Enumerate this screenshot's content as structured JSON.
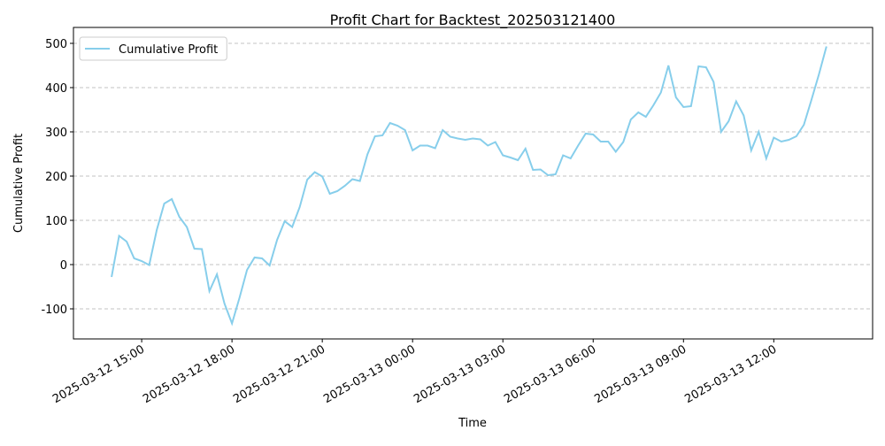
{
  "chart_data": {
    "type": "line",
    "title": "Profit Chart for Backtest_202503121400",
    "x_label": "Time",
    "y_label": "Cumulative Profit",
    "x": [
      "2025-03-12 14:00",
      "2025-03-12 14:15",
      "2025-03-12 14:30",
      "2025-03-12 14:45",
      "2025-03-12 15:00",
      "2025-03-12 15:15",
      "2025-03-12 15:30",
      "2025-03-12 15:45",
      "2025-03-12 16:00",
      "2025-03-12 16:15",
      "2025-03-12 16:30",
      "2025-03-12 16:45",
      "2025-03-12 17:00",
      "2025-03-12 17:15",
      "2025-03-12 17:30",
      "2025-03-12 17:45",
      "2025-03-12 18:00",
      "2025-03-12 18:15",
      "2025-03-12 18:30",
      "2025-03-12 18:45",
      "2025-03-12 19:00",
      "2025-03-12 19:15",
      "2025-03-12 19:30",
      "2025-03-12 19:45",
      "2025-03-12 20:00",
      "2025-03-12 20:15",
      "2025-03-12 20:30",
      "2025-03-12 20:45",
      "2025-03-12 21:00",
      "2025-03-12 21:15",
      "2025-03-12 21:30",
      "2025-03-12 21:45",
      "2025-03-12 22:00",
      "2025-03-12 22:15",
      "2025-03-12 22:30",
      "2025-03-12 22:45",
      "2025-03-12 23:00",
      "2025-03-12 23:15",
      "2025-03-12 23:30",
      "2025-03-12 23:45",
      "2025-03-13 00:00",
      "2025-03-13 00:15",
      "2025-03-13 00:30",
      "2025-03-13 00:45",
      "2025-03-13 01:00",
      "2025-03-13 01:15",
      "2025-03-13 01:30",
      "2025-03-13 01:45",
      "2025-03-13 02:00",
      "2025-03-13 02:15",
      "2025-03-13 02:30",
      "2025-03-13 02:45",
      "2025-03-13 03:00",
      "2025-03-13 03:15",
      "2025-03-13 03:30",
      "2025-03-13 03:45",
      "2025-03-13 04:00",
      "2025-03-13 04:15",
      "2025-03-13 04:30",
      "2025-03-13 04:45",
      "2025-03-13 05:00",
      "2025-03-13 05:15",
      "2025-03-13 05:30",
      "2025-03-13 05:45",
      "2025-03-13 06:00",
      "2025-03-13 06:15",
      "2025-03-13 06:30",
      "2025-03-13 06:45",
      "2025-03-13 07:00",
      "2025-03-13 07:15",
      "2025-03-13 07:30",
      "2025-03-13 07:45",
      "2025-03-13 08:00",
      "2025-03-13 08:15",
      "2025-03-13 08:30",
      "2025-03-13 08:45",
      "2025-03-13 09:00",
      "2025-03-13 09:15",
      "2025-03-13 09:30",
      "2025-03-13 09:45",
      "2025-03-13 10:00",
      "2025-03-13 10:15",
      "2025-03-13 10:30",
      "2025-03-13 10:45",
      "2025-03-13 11:00",
      "2025-03-13 11:15",
      "2025-03-13 11:30",
      "2025-03-13 11:45",
      "2025-03-13 12:00",
      "2025-03-13 12:15",
      "2025-03-13 12:30",
      "2025-03-13 12:45",
      "2025-03-13 13:00",
      "2025-03-13 13:15",
      "2025-03-13 13:30",
      "2025-03-13 13:45"
    ],
    "series": [
      {
        "name": "Cumulative Profit",
        "color": "#87ceeb",
        "values": [
          -28,
          65,
          52,
          14,
          8,
          -1,
          78,
          138,
          148,
          108,
          85,
          36,
          35,
          -60,
          -22,
          -88,
          -133,
          -75,
          -12,
          16,
          14,
          -2,
          56,
          98,
          85,
          130,
          192,
          209,
          199,
          160,
          166,
          178,
          193,
          189,
          249,
          290,
          292,
          320,
          314,
          304,
          258,
          269,
          269,
          263,
          304,
          289,
          285,
          282,
          285,
          283,
          269,
          277,
          247,
          242,
          236,
          262,
          214,
          215,
          202,
          204,
          247,
          240,
          269,
          296,
          294,
          278,
          278,
          255,
          277,
          328,
          344,
          334,
          360,
          389,
          450,
          378,
          356,
          358,
          448,
          446,
          413,
          300,
          324,
          369,
          337,
          258,
          300,
          240,
          287,
          278,
          282,
          290,
          316,
          372,
          430,
          493
        ]
      }
    ],
    "xlim": [
      "2025-03-12 12:44",
      "2025-03-13 15:17"
    ],
    "xticks": [
      "2025-03-12 15:00",
      "2025-03-12 18:00",
      "2025-03-12 21:00",
      "2025-03-13 00:00",
      "2025-03-13 03:00",
      "2025-03-13 06:00",
      "2025-03-13 09:00",
      "2025-03-13 12:00"
    ],
    "ylim": [
      -168,
      536
    ],
    "yticks": [
      -100,
      0,
      100,
      200,
      300,
      400,
      500
    ],
    "grid": "y",
    "legend": "upper left"
  }
}
